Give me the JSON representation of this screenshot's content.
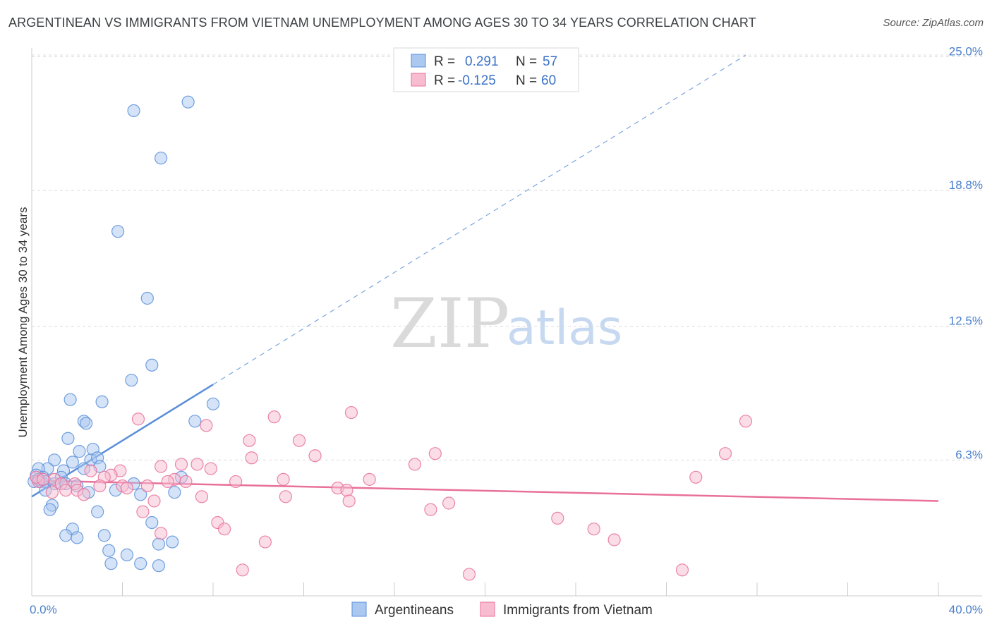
{
  "title": "ARGENTINEAN VS IMMIGRANTS FROM VIETNAM UNEMPLOYMENT AMONG AGES 30 TO 34 YEARS CORRELATION CHART",
  "source": "Source: ZipAtlas.com",
  "watermark": {
    "zip": "ZIP",
    "atlas": "atlas"
  },
  "colors": {
    "blue": "#5b8fd8",
    "blue_fill": "#aac8f0",
    "pink": "#e8709a",
    "pink_fill": "#f7bcd0",
    "axis_text": "#4a7fcb"
  },
  "chart_data": {
    "type": "scatter",
    "title": "ARGENTINEAN VS IMMIGRANTS FROM VIETNAM UNEMPLOYMENT AMONG AGES 30 TO 34 YEARS CORRELATION CHART",
    "xlabel": "",
    "ylabel": "Unemployment Among Ages 30 to 34 years",
    "xlim": [
      0,
      40
    ],
    "ylim": [
      0,
      25.8
    ],
    "x_tick_labels": {
      "min": "0.0%",
      "max": "40.0%"
    },
    "y_ticks": [
      {
        "value": 6.3,
        "label": "6.3%"
      },
      {
        "value": 12.5,
        "label": "12.5%"
      },
      {
        "value": 18.8,
        "label": "18.8%"
      },
      {
        "value": 25.0,
        "label": "25.0%"
      }
    ],
    "legend": {
      "r_label": "R =",
      "n_label": "N =",
      "entries": [
        {
          "name": "Argentineans",
          "r": "0.291",
          "n": "57"
        },
        {
          "name": "Immigrants from Vietnam",
          "r": "-0.125",
          "n": "60"
        }
      ]
    },
    "series": [
      {
        "name": "Argentineans",
        "trend": {
          "x0": 0,
          "y0": 4.6,
          "x1": 8.0,
          "y1": 9.8,
          "dash_to_x": 31.5
        },
        "points": [
          [
            6.9,
            22.9
          ],
          [
            4.5,
            22.5
          ],
          [
            5.7,
            20.3
          ],
          [
            3.8,
            16.9
          ],
          [
            5.1,
            13.8
          ],
          [
            5.3,
            10.7
          ],
          [
            4.4,
            10.0
          ],
          [
            1.7,
            9.1
          ],
          [
            3.1,
            9.0
          ],
          [
            8.0,
            8.9
          ],
          [
            2.3,
            8.1
          ],
          [
            2.4,
            8.0
          ],
          [
            7.2,
            8.1
          ],
          [
            1.6,
            7.3
          ],
          [
            2.7,
            6.8
          ],
          [
            2.1,
            6.7
          ],
          [
            1.0,
            6.3
          ],
          [
            1.8,
            6.2
          ],
          [
            2.6,
            6.3
          ],
          [
            2.9,
            6.4
          ],
          [
            3.0,
            6.0
          ],
          [
            0.7,
            5.9
          ],
          [
            0.3,
            5.9
          ],
          [
            1.4,
            5.8
          ],
          [
            2.3,
            5.9
          ],
          [
            0.2,
            5.6
          ],
          [
            0.5,
            5.5
          ],
          [
            1.3,
            5.5
          ],
          [
            0.1,
            5.3
          ],
          [
            0.4,
            5.3
          ],
          [
            0.6,
            5.3
          ],
          [
            1.0,
            5.2
          ],
          [
            1.5,
            5.2
          ],
          [
            2.0,
            5.1
          ],
          [
            6.6,
            5.5
          ],
          [
            4.5,
            5.2
          ],
          [
            0.6,
            4.9
          ],
          [
            2.5,
            4.8
          ],
          [
            3.7,
            4.9
          ],
          [
            6.3,
            4.8
          ],
          [
            4.8,
            4.7
          ],
          [
            0.9,
            4.2
          ],
          [
            0.8,
            4.0
          ],
          [
            2.9,
            3.9
          ],
          [
            5.3,
            3.4
          ],
          [
            1.8,
            3.1
          ],
          [
            1.5,
            2.8
          ],
          [
            2.0,
            2.7
          ],
          [
            3.2,
            2.8
          ],
          [
            6.2,
            2.5
          ],
          [
            5.6,
            2.4
          ],
          [
            3.4,
            2.1
          ],
          [
            4.2,
            1.9
          ],
          [
            3.5,
            1.5
          ],
          [
            4.8,
            1.5
          ],
          [
            5.6,
            1.4
          ],
          [
            0.3,
            5.4
          ]
        ]
      },
      {
        "name": "Immigrants from Vietnam",
        "trend": {
          "x0": 0,
          "y0": 5.35,
          "x1": 40,
          "y1": 4.4
        },
        "points": [
          [
            14.1,
            8.5
          ],
          [
            10.7,
            8.3
          ],
          [
            4.7,
            8.2
          ],
          [
            31.5,
            8.1
          ],
          [
            7.7,
            7.9
          ],
          [
            9.6,
            7.2
          ],
          [
            11.8,
            7.2
          ],
          [
            17.8,
            6.6
          ],
          [
            30.6,
            6.6
          ],
          [
            12.5,
            6.5
          ],
          [
            9.7,
            6.4
          ],
          [
            16.9,
            6.1
          ],
          [
            6.6,
            6.1
          ],
          [
            7.3,
            6.1
          ],
          [
            5.7,
            6.0
          ],
          [
            2.6,
            5.8
          ],
          [
            7.9,
            5.9
          ],
          [
            3.9,
            5.8
          ],
          [
            3.5,
            5.6
          ],
          [
            3.2,
            5.5
          ],
          [
            1.0,
            5.4
          ],
          [
            11.1,
            5.4
          ],
          [
            14.9,
            5.4
          ],
          [
            6.3,
            5.4
          ],
          [
            6.0,
            5.3
          ],
          [
            6.8,
            5.3
          ],
          [
            9.0,
            5.3
          ],
          [
            29.3,
            5.5
          ],
          [
            0.3,
            5.3
          ],
          [
            1.3,
            5.2
          ],
          [
            1.9,
            5.2
          ],
          [
            4.0,
            5.1
          ],
          [
            4.2,
            5.0
          ],
          [
            5.1,
            5.1
          ],
          [
            3.0,
            5.1
          ],
          [
            13.5,
            5.0
          ],
          [
            13.9,
            4.9
          ],
          [
            2.0,
            4.9
          ],
          [
            0.9,
            4.8
          ],
          [
            1.5,
            4.9
          ],
          [
            2.3,
            4.7
          ],
          [
            11.2,
            4.6
          ],
          [
            7.5,
            4.6
          ],
          [
            14.0,
            4.4
          ],
          [
            5.4,
            4.4
          ],
          [
            18.4,
            4.3
          ],
          [
            17.6,
            4.0
          ],
          [
            4.9,
            3.9
          ],
          [
            23.2,
            3.6
          ],
          [
            8.2,
            3.4
          ],
          [
            8.5,
            3.1
          ],
          [
            24.8,
            3.1
          ],
          [
            5.7,
            2.9
          ],
          [
            25.7,
            2.6
          ],
          [
            10.3,
            2.5
          ],
          [
            9.3,
            1.2
          ],
          [
            28.7,
            1.2
          ],
          [
            19.3,
            1.0
          ],
          [
            0.2,
            5.5
          ],
          [
            0.5,
            5.4
          ]
        ]
      }
    ]
  }
}
